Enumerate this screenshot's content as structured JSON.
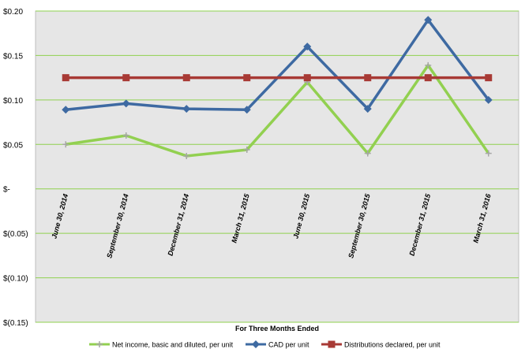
{
  "chart_data": {
    "type": "line",
    "title": "",
    "xlabel": "For Three Months Ended",
    "ylabel": "",
    "categories": [
      "June 30, 2014",
      "September 30, 2014",
      "December 31, 2014",
      "March 31, 2015",
      "June 30, 2015",
      "September 30, 2015",
      "December 31, 2015",
      "March 31, 2016"
    ],
    "ylim": [
      -0.15,
      0.2
    ],
    "yticks": [
      0.2,
      0.15,
      0.1,
      0.05,
      0,
      -0.05,
      -0.1,
      -0.15
    ],
    "ytick_labels": [
      "$0.20",
      "$0.15",
      "$0.10",
      "$0.05",
      "$-",
      "$(0.05)",
      "$(0.10)",
      "$(0.15)"
    ],
    "grid": true,
    "legend_position": "bottom",
    "plot_background": "#e6e6e6",
    "gridline_color": "#8fd14f",
    "series": [
      {
        "name": "Net income, basic and diluted, per unit",
        "color": "#92d050",
        "marker": "plus",
        "values": [
          0.05,
          0.06,
          0.037,
          0.044,
          0.12,
          0.04,
          0.139,
          0.04
        ]
      },
      {
        "name": "CAD per unit",
        "color": "#3e6aa2",
        "marker": "diamond",
        "values": [
          0.089,
          0.096,
          0.09,
          0.089,
          0.16,
          0.09,
          0.19,
          0.1
        ]
      },
      {
        "name": "Distributions declared, per unit",
        "color": "#a83a35",
        "marker": "square",
        "values": [
          0.125,
          0.125,
          0.125,
          0.125,
          0.125,
          0.125,
          0.125,
          0.125
        ]
      }
    ]
  }
}
